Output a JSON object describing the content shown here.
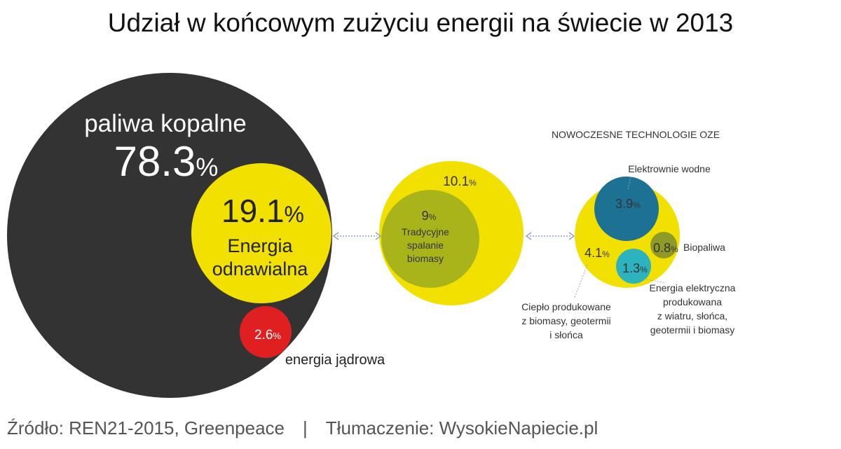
{
  "title": "Udział w końcowym zużyciu energii na świecie w 2013",
  "source": {
    "text": "Źródło: REN21-2015, Greenpeace",
    "separator": "|",
    "translation": "Tłumaczenie: WysokieNapiecie.pl"
  },
  "colors": {
    "fossil": "#333333",
    "renewable": "#f2e000",
    "nuclear": "#e02020",
    "traditional": "#a9b41a",
    "hydro": "#1d7192",
    "biofuel": "#8f9a28",
    "wind_solar": "#2cb3be",
    "connector": "#8fa3c0"
  },
  "chart_data": {
    "type": "bubble",
    "unit": "%",
    "groups": [
      {
        "id": "total",
        "items": [
          {
            "id": "fossil",
            "label": "paliwa kopalne",
            "value": 78.3,
            "value_text": "78.3"
          },
          {
            "id": "renewable",
            "label_lines": [
              "Energia",
              "odnawialna"
            ],
            "value": 19.1,
            "value_text": "19.1"
          },
          {
            "id": "nuclear",
            "label": "energia jądrowa",
            "value": 2.6,
            "value_text": "2.6"
          }
        ]
      },
      {
        "id": "renewables",
        "items": [
          {
            "id": "renewable_total",
            "value": 10.1,
            "value_text": "10.1"
          },
          {
            "id": "traditional",
            "label_lines": [
              "Tradycyjne",
              "spalanie",
              "biomasy"
            ],
            "value": 9,
            "value_text": "9"
          }
        ]
      },
      {
        "id": "modern",
        "title": "NOWOCZESNE TECHNOLOGIE OZE",
        "items": [
          {
            "id": "modern_total",
            "value": 4.1,
            "value_text": "4.1",
            "label_lines": [
              "Ciepło produkowane",
              "z biomasy, geotermii",
              "i słońca"
            ]
          },
          {
            "id": "hydro",
            "label": "Elektrownie wodne",
            "value": 3.9,
            "value_text": "3.9"
          },
          {
            "id": "wind_solar",
            "label_lines": [
              "Energia elektryczna",
              "produkowana",
              "z wiatru, słońca,",
              "geotermii i biomasy"
            ],
            "value": 1.3,
            "value_text": "1.3"
          },
          {
            "id": "biofuel",
            "label": "Biopaliwa",
            "value": 0.8,
            "value_text": "0.8"
          }
        ]
      }
    ]
  }
}
